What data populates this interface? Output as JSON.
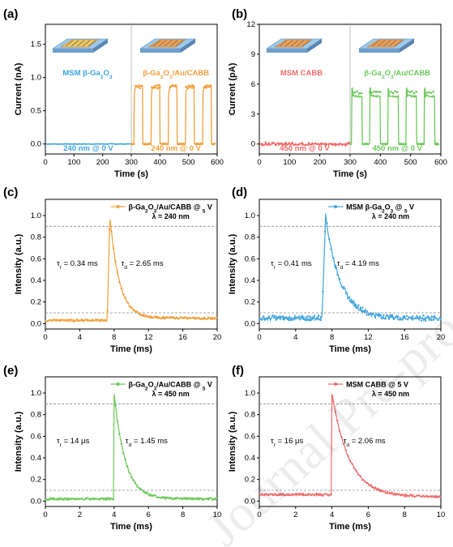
{
  "watermark": "Journal Pre-proof",
  "colors": {
    "blue": "#3fa4dd",
    "orange": "#f2a03c",
    "salmon": "#ee6a6a",
    "green": "#6cc85b",
    "dashed": "#8a8a8a"
  },
  "chart_data": [
    {
      "panel": "(a)",
      "type": "line",
      "xlabel": "Time (s)",
      "ylabel": "Current (nA)",
      "xlim": [
        0,
        600
      ],
      "ylim": [
        -0.15,
        1.8
      ],
      "xticks": [
        0,
        100,
        200,
        300,
        400,
        500,
        600
      ],
      "yticks": [
        0.0,
        0.5,
        1.0,
        1.5
      ],
      "ytick_labels": [
        "0.0",
        "0.5",
        "1.0",
        "1.5"
      ],
      "divider_x": 300,
      "left_series": {
        "name": "MSM β-Ga2O3",
        "color": "#3fa4dd",
        "off": 0.0,
        "on": 0.0,
        "annotation": "240 nm @ 0 V"
      },
      "right_series": {
        "name": "β-Ga2O3/Au/CABB",
        "color": "#f2a03c",
        "off": 0.0,
        "on": 0.88,
        "annotation": "240 nm @ 0 V",
        "pulses": [
          [
            310,
            340
          ],
          [
            370,
            400
          ],
          [
            430,
            460
          ],
          [
            490,
            520
          ],
          [
            550,
            580
          ]
        ]
      }
    },
    {
      "panel": "(b)",
      "type": "line",
      "xlabel": "Time (s)",
      "ylabel": "Current (pA)",
      "xlim": [
        0,
        600
      ],
      "ylim": [
        -1,
        12
      ],
      "xticks": [
        0,
        100,
        200,
        300,
        400,
        500,
        600
      ],
      "yticks": [
        0,
        3,
        6,
        9,
        12
      ],
      "ytick_labels": [
        "0",
        "3",
        "6",
        "9",
        "12"
      ],
      "divider_x": 300,
      "left_series": {
        "name": "MSM CABB",
        "color": "#ee6a6a",
        "off": 0.0,
        "on": 0.0,
        "annotation": "450 nm @ 0 V"
      },
      "right_series": {
        "name": "β-Ga2O3/Au/CABB",
        "color": "#6cc85b",
        "off": 0.0,
        "on": 5.3,
        "annotation": "450 nm @ 0 V",
        "pulses": [
          [
            305,
            340
          ],
          [
            365,
            400
          ],
          [
            425,
            460
          ],
          [
            485,
            520
          ],
          [
            545,
            580
          ]
        ]
      }
    },
    {
      "panel": "(c)",
      "type": "line",
      "xlabel": "Time (ms)",
      "ylabel": "Intensity (a.u.)",
      "xlim": [
        0,
        20
      ],
      "ylim": [
        -0.05,
        1.15
      ],
      "xticks": [
        0,
        4,
        8,
        12,
        16,
        20
      ],
      "yticks": [
        0.0,
        0.2,
        0.4,
        0.6,
        0.8,
        1.0
      ],
      "ytick_labels": [
        "0.0",
        "0.2",
        "0.4",
        "0.6",
        "0.8",
        "1.0"
      ],
      "legend": "β-Ga2O3/Au/CABB @ 5 V",
      "wavelength": "λ = 240 nm",
      "color": "#f2a03c",
      "baseline": 0.03,
      "tail": 0.05,
      "peak_x": 7.5,
      "rise_start": 7.2,
      "decay_tau": 1.1,
      "dashed": [
        0.9,
        0.1
      ],
      "tau_r": "0.34 ms",
      "tau_d": "2.65 ms"
    },
    {
      "panel": "(d)",
      "type": "line",
      "xlabel": "Time (ms)",
      "ylabel": "Intensity (a.u.)",
      "xlim": [
        0,
        20
      ],
      "ylim": [
        -0.05,
        1.15
      ],
      "xticks": [
        0,
        4,
        8,
        12,
        16,
        20
      ],
      "yticks": [
        0.0,
        0.2,
        0.4,
        0.6,
        0.8,
        1.0
      ],
      "ytick_labels": [
        "0.0",
        "0.2",
        "0.4",
        "0.6",
        "0.8",
        "1.0"
      ],
      "legend": "MSM β-Ga2O3 @ 5 V",
      "wavelength": "λ = 240 nm",
      "color": "#3fa4dd",
      "baseline": 0.05,
      "tail": 0.05,
      "peak_x": 7.3,
      "rise_start": 6.9,
      "decay_tau": 1.6,
      "dashed": [
        0.9,
        0.1
      ],
      "tau_r": "0.41 ms",
      "tau_d": "4.19 ms"
    },
    {
      "panel": "(e)",
      "type": "line",
      "xlabel": "Time (ms)",
      "ylabel": "Intensity (a.u.)",
      "xlim": [
        0,
        10
      ],
      "ylim": [
        -0.05,
        1.15
      ],
      "xticks": [
        0,
        2,
        4,
        6,
        8,
        10
      ],
      "yticks": [
        0.0,
        0.2,
        0.4,
        0.6,
        0.8,
        1.0
      ],
      "ytick_labels": [
        "0.0",
        "0.2",
        "0.4",
        "0.6",
        "0.8",
        "1.0"
      ],
      "legend": "β-Ga2O3/Au/CABB @ 5 V",
      "wavelength": "λ = 450 nm",
      "color": "#6cc85b",
      "baseline": 0.02,
      "tail": 0.02,
      "peak_x": 4.0,
      "rise_start": 3.98,
      "decay_tau": 0.65,
      "dashed": [
        0.9,
        0.1
      ],
      "tau_r": "14 μs",
      "tau_d": "1.45 ms"
    },
    {
      "panel": "(f)",
      "type": "line",
      "xlabel": "Time (ms)",
      "ylabel": "Intensity (a.u.)",
      "xlim": [
        0,
        10
      ],
      "ylim": [
        -0.05,
        1.15
      ],
      "xticks": [
        0,
        2,
        4,
        6,
        8,
        10
      ],
      "yticks": [
        0.0,
        0.2,
        0.4,
        0.6,
        0.8,
        1.0
      ],
      "ytick_labels": [
        "0.0",
        "0.2",
        "0.4",
        "0.6",
        "0.8",
        "1.0"
      ],
      "legend": "MSM CABB @ 5 V",
      "wavelength": "λ = 450 nm",
      "color": "#ee6a6a",
      "baseline": 0.06,
      "tail": 0.04,
      "peak_x": 4.0,
      "rise_start": 3.98,
      "decay_tau": 0.95,
      "dashed": [
        0.9,
        0.1
      ],
      "tau_r": "16 μs",
      "tau_d": "2.06 ms"
    }
  ]
}
